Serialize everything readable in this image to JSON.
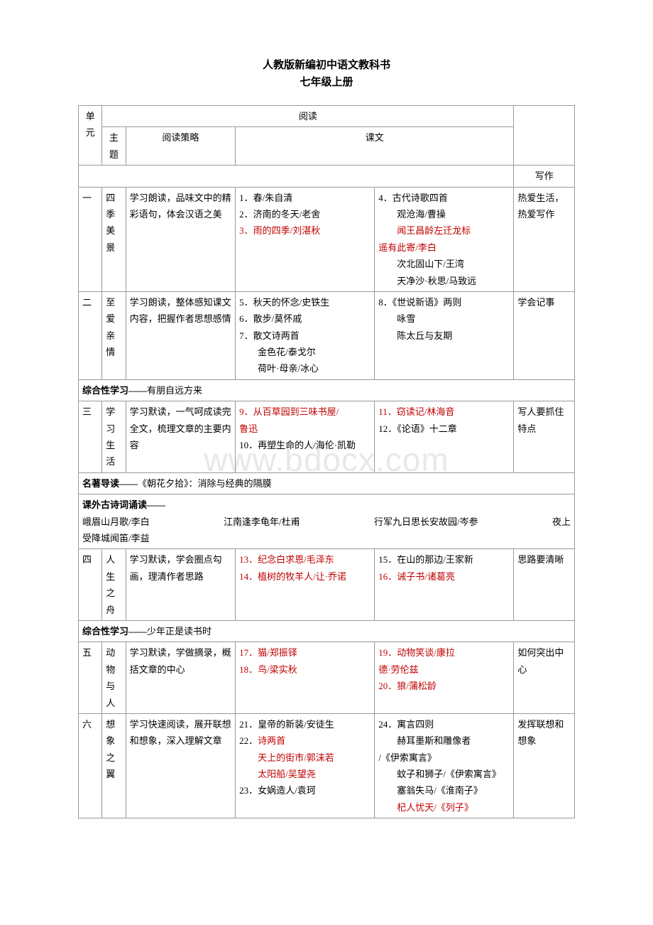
{
  "title_line1": "人教版新编初中语文教科书",
  "title_line2": "七年级上册",
  "watermark": "www.bdocx.com",
  "headers": {
    "unit": "单元",
    "reading": "阅读",
    "theme": "主题",
    "strategy": "阅读策略",
    "text": "课文",
    "writing": "写作"
  },
  "u1": {
    "num": "一",
    "theme": "四季美景",
    "strategy": "学习朗读，品味文中的精彩语句，体会汉语之美",
    "t1": "1．春/朱自清",
    "t2": "2．济南的冬天/老舍",
    "t3": "3．雨的四季/刘湛秋",
    "t4": "4．古代诗歌四首",
    "t4a": "观沧海/曹操",
    "t4b": "闻王昌龄左迁龙标",
    "t4c": "遥有此寄/李白",
    "t4d": "次北固山下/王湾",
    "t4e": "天净沙·秋思/马致远",
    "write": "热爱生活，热爱写作"
  },
  "u2": {
    "num": "二",
    "theme": "至爱亲情",
    "strategy": "学习朗读，整体感知课文内容，把握作者思想感情",
    "t5": "5．秋天的怀念/史铁生",
    "t6": "6．散步/莫怀戚",
    "t7": "7．散文诗两首",
    "t7a": "金色花/泰戈尔",
    "t7b": "荷叶·母亲/冰心",
    "t8": "8．《世说新语》两则",
    "t8a": "咏雪",
    "t8b": "陈太丘与友期",
    "write": "学会记事"
  },
  "act1": "综合性学习——",
  "act1b": "有朋自远方来",
  "u3": {
    "num": "三",
    "theme": "学习生活",
    "strategy": "学习默读，一气呵成读完全文，梳理文章的主要内容",
    "t9": "9．从百草园到三味书屋/",
    "t9b": "鲁迅",
    "t10": "10．再塑生命的人/海伦·凯勒",
    "t11": "11．窃读记/林海音",
    "t12": "12．《论语》十二章",
    "write": "写人要抓住特点"
  },
  "mid1": "名著导读——",
  "mid1b": "《朝花夕拾》：消除与经典的隔膜",
  "mid2": "课外古诗词诵读——",
  "mid3a": "峨眉山月歌/李白",
  "mid3b": "江南逢李龟年/杜甫",
  "mid3c": "行军九日思长安故园/岑参",
  "mid3d": "夜上",
  "mid4": "受降城闻笛/李益",
  "u4": {
    "num": "四",
    "theme": "人生之舟",
    "strategy": "学习默读，学会圈点勾画，理清作者思路",
    "t13": "13．纪念白求恩/毛泽东",
    "t14": "14．植树的牧羊人/让·乔诺",
    "t15": "15．在山的那边/王家新",
    "t16": "16．诫子书/诸葛亮",
    "write": "思路要清晰"
  },
  "act2": "综合性学习——",
  "act2b": "少年正是读书时",
  "u5": {
    "num": "五",
    "theme": "动物与人",
    "strategy": "学习默读，学做摘录，概括文章的中心",
    "t17": "17．猫/郑振铎",
    "t18": "18．鸟/梁实秋",
    "t19": "19．动物笑谈/康拉",
    "t19b": "德·劳伦兹",
    "t20": "20．狼/蒲松龄",
    "write": "如何突出中心"
  },
  "u6": {
    "num": "六",
    "theme": "想象之翼",
    "strategy": "学习快速阅读，展开联想和想象，深入理解文章",
    "t21": "21．皇帝的新装/安徒生",
    "t22": "22．诗两首",
    "t22a": "天上的街市/郭沫若",
    "t22b": "太阳船/吴望尧",
    "t23": "23．女娲造人/袁珂",
    "t24": "24．寓言四则",
    "t24a": "赫耳墨斯和雕像者",
    "t24b": "/《伊索寓言》",
    "t24c": "蚊子和狮子/《伊索寓言》",
    "t24d": "塞翁失马/《淮南子》",
    "t24e": "杞人忧天/《列子》",
    "write": "发挥联想和想象"
  }
}
